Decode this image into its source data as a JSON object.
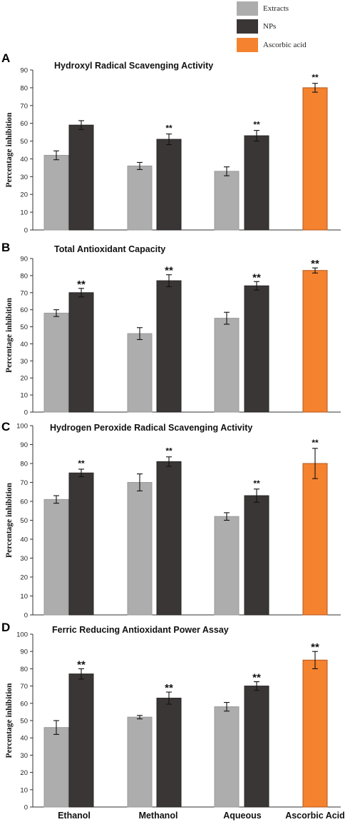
{
  "legend": [
    {
      "label": "Extracts",
      "color": "#adadad"
    },
    {
      "label": "NPs",
      "color": "#3b3636"
    },
    {
      "label": "Ascorbic acid",
      "color": "#f5822f"
    }
  ],
  "categories": [
    "Ethanol",
    "Methanol",
    "Aqueous",
    "Ascorbic Acid"
  ],
  "chart_data": [
    {
      "type": "bar",
      "panel": "A",
      "title": "Hydroxyl Radical Scavenging Activity",
      "ylabel": "Percentage inhibition",
      "ylim": [
        0,
        90
      ],
      "yticks": [
        0,
        10,
        20,
        30,
        40,
        50,
        60,
        70,
        80,
        90
      ],
      "categories": [
        "Ethanol",
        "Methanol",
        "Aqueous",
        "Ascorbic Acid"
      ],
      "series": [
        {
          "name": "Extracts",
          "values": [
            42,
            36,
            33,
            null
          ],
          "errors": [
            2.5,
            2,
            2.5,
            null
          ]
        },
        {
          "name": "NPs",
          "values": [
            59,
            51,
            53,
            null
          ],
          "errors": [
            2.5,
            3,
            3,
            null
          ],
          "significance": [
            "",
            "**",
            "**",
            ""
          ]
        },
        {
          "name": "Ascorbic acid",
          "values": [
            null,
            null,
            null,
            80
          ],
          "errors": [
            null,
            null,
            null,
            2.5
          ],
          "significance": [
            "",
            "",
            "",
            "**"
          ]
        }
      ]
    },
    {
      "type": "bar",
      "panel": "B",
      "title": "Total Antioxidant Capacity",
      "ylabel": "Percentage inhibition",
      "ylim": [
        0,
        90
      ],
      "yticks": [
        0,
        10,
        20,
        30,
        40,
        50,
        60,
        70,
        80,
        90
      ],
      "categories": [
        "Ethanol",
        "Methanol",
        "Aqueous",
        "Ascorbic Acid"
      ],
      "series": [
        {
          "name": "Extracts",
          "values": [
            58,
            46,
            55,
            null
          ],
          "errors": [
            2,
            3.5,
            3.5,
            null
          ]
        },
        {
          "name": "NPs",
          "values": [
            70,
            77,
            74,
            null
          ],
          "errors": [
            2.5,
            3.5,
            2.5,
            null
          ],
          "significance": [
            "**",
            "**",
            "**",
            ""
          ]
        },
        {
          "name": "Ascorbic acid",
          "values": [
            null,
            null,
            null,
            83
          ],
          "errors": [
            null,
            null,
            null,
            1.5
          ],
          "significance": [
            "",
            "",
            "",
            "**"
          ]
        }
      ]
    },
    {
      "type": "bar",
      "panel": "C",
      "title": "Hydrogen  Peroxide Radical Scavenging Activity",
      "ylabel": "Percentage inhibition",
      "ylim": [
        0,
        100
      ],
      "yticks": [
        0,
        10,
        20,
        30,
        40,
        50,
        60,
        70,
        80,
        90,
        100
      ],
      "categories": [
        "Ethanol",
        "Methanol",
        "Aqueous",
        "Ascorbic Acid"
      ],
      "series": [
        {
          "name": "Extracts",
          "values": [
            61,
            70,
            52,
            null
          ],
          "errors": [
            2,
            4.5,
            2,
            null
          ]
        },
        {
          "name": "NPs",
          "values": [
            75,
            81,
            63,
            null
          ],
          "errors": [
            2,
            2.5,
            3.5,
            null
          ],
          "significance": [
            "**",
            "**",
            "**",
            ""
          ]
        },
        {
          "name": "Ascorbic acid",
          "values": [
            null,
            null,
            null,
            80
          ],
          "errors": [
            null,
            null,
            null,
            8
          ],
          "significance": [
            "",
            "",
            "",
            "**"
          ]
        }
      ]
    },
    {
      "type": "bar",
      "panel": "D",
      "title": "Ferric Reducing Antioxidant Power Assay",
      "ylabel": "Percentage inhibition",
      "ylim": [
        0,
        100
      ],
      "yticks": [
        0,
        10,
        20,
        30,
        40,
        50,
        60,
        70,
        80,
        90,
        100
      ],
      "categories": [
        "Ethanol",
        "Methanol",
        "Aqueous",
        "Ascorbic Acid"
      ],
      "series": [
        {
          "name": "Extracts",
          "values": [
            46,
            52,
            58,
            null
          ],
          "errors": [
            4,
            1,
            2.5,
            null
          ]
        },
        {
          "name": "NPs",
          "values": [
            77,
            63,
            70,
            null
          ],
          "errors": [
            3,
            3.5,
            2.5,
            null
          ],
          "significance": [
            "**",
            "**",
            "**",
            ""
          ]
        },
        {
          "name": "Ascorbic acid",
          "values": [
            null,
            null,
            null,
            85
          ],
          "errors": [
            null,
            null,
            null,
            5
          ],
          "significance": [
            "",
            "",
            "",
            "**"
          ]
        }
      ]
    }
  ]
}
